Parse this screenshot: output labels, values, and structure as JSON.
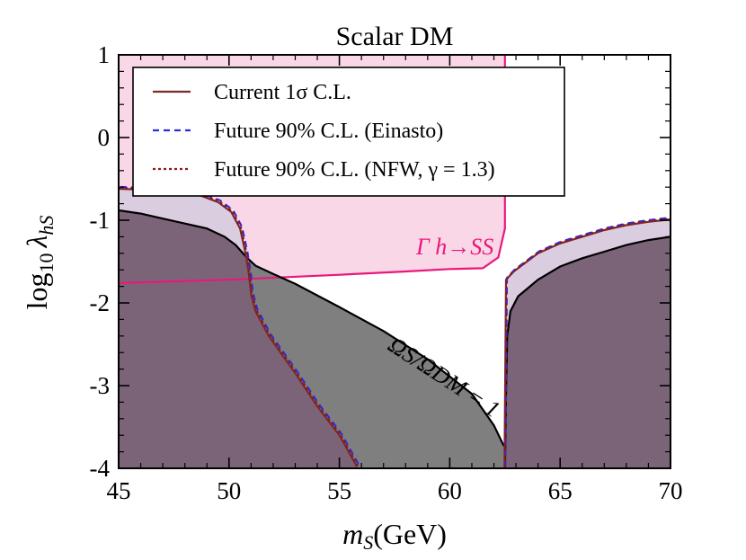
{
  "chart_data": {
    "type": "area",
    "title": "Scalar DM",
    "xlabel": {
      "main": "m",
      "sub": "S",
      "rest": "(GeV)"
    },
    "ylabel": {
      "main": "log",
      "sub1": "10",
      "lambda": "λ",
      "sub2": "hS"
    },
    "xlim": [
      45,
      70
    ],
    "ylim": [
      -4,
      1
    ],
    "xticks": [
      45,
      50,
      55,
      60,
      65,
      70
    ],
    "yticks": [
      1,
      0,
      -1,
      -2,
      -3,
      -4
    ],
    "ytick_labels": [
      "1",
      "0",
      "-1",
      "-2",
      "-3",
      "-4"
    ],
    "legend_position": "top-left",
    "legend": [
      {
        "label": "Current 1σ C.L.",
        "style": "solid",
        "color": "#7a2a2a"
      },
      {
        "label": "Future 90% C.L. (Einasto)",
        "style": "dashed",
        "color": "#2b2be0"
      },
      {
        "label": "Future 90% C.L. (NFW, γ = 1.3)",
        "style": "dotted",
        "color": "#8b1a1a"
      }
    ],
    "annotations": {
      "width_region": "Γ h→SS",
      "relic_line": "ΩS/ΩDM = 1"
    },
    "colors": {
      "gray_fill": "#7f7f7f",
      "lavender_fill": "#dbcde0",
      "overlap_fill": "#7c6478",
      "pink_fill": "#fad7e7",
      "pink_line": "#e8187d",
      "current_line": "#7a2a2a",
      "einasto_line": "#2b2be0",
      "nfw_line": "#8b1a1a"
    },
    "series": [
      {
        "name": "relic_density",
        "points": [
          [
            45,
            -0.88
          ],
          [
            46,
            -0.92
          ],
          [
            47,
            -0.98
          ],
          [
            48,
            -1.04
          ],
          [
            49,
            -1.1
          ],
          [
            49.8,
            -1.2
          ],
          [
            50.3,
            -1.3
          ],
          [
            50.8,
            -1.45
          ],
          [
            51.2,
            -1.55
          ],
          [
            52,
            -1.65
          ],
          [
            53,
            -1.77
          ],
          [
            55,
            -2.05
          ],
          [
            57,
            -2.34
          ],
          [
            59,
            -2.68
          ],
          [
            61,
            -3.1
          ],
          [
            62.0,
            -3.48
          ],
          [
            62.45,
            -3.73
          ]
        ]
      },
      {
        "name": "relic_density_right",
        "points": [
          [
            62.5,
            -4.0
          ],
          [
            62.55,
            -3.1
          ],
          [
            62.6,
            -2.4
          ],
          [
            62.75,
            -2.1
          ],
          [
            63.1,
            -1.92
          ],
          [
            64,
            -1.72
          ],
          [
            65,
            -1.56
          ],
          [
            66,
            -1.46
          ],
          [
            67,
            -1.38
          ],
          [
            68,
            -1.3
          ],
          [
            69,
            -1.24
          ],
          [
            70,
            -1.2
          ]
        ]
      },
      {
        "name": "current_bound_left",
        "points": [
          [
            45,
            -0.62
          ],
          [
            47,
            -0.64
          ],
          [
            48.5,
            -0.68
          ],
          [
            49.5,
            -0.78
          ],
          [
            50.1,
            -0.9
          ],
          [
            50.5,
            -1.1
          ],
          [
            50.75,
            -1.4
          ],
          [
            50.9,
            -1.65
          ],
          [
            51.0,
            -1.9
          ],
          [
            51.2,
            -2.1
          ],
          [
            51.8,
            -2.4
          ],
          [
            53,
            -2.85
          ],
          [
            54,
            -3.25
          ],
          [
            55,
            -3.6
          ],
          [
            55.8,
            -3.98
          ]
        ]
      },
      {
        "name": "current_bound_right",
        "points": [
          [
            62.48,
            -4.0
          ],
          [
            62.55,
            -1.72
          ],
          [
            62.9,
            -1.62
          ],
          [
            64,
            -1.4
          ],
          [
            65,
            -1.28
          ],
          [
            66,
            -1.2
          ],
          [
            67,
            -1.12
          ],
          [
            68,
            -1.06
          ],
          [
            69,
            -1.02
          ],
          [
            70,
            -0.99
          ]
        ]
      },
      {
        "name": "width_bound",
        "points": [
          [
            45,
            -1.76
          ],
          [
            50,
            -1.72
          ],
          [
            55,
            -1.66
          ],
          [
            58,
            -1.62
          ],
          [
            60,
            -1.59
          ],
          [
            61.5,
            -1.58
          ],
          [
            62.2,
            -1.45
          ],
          [
            62.5,
            -1.1
          ],
          [
            62.5,
            1.0
          ]
        ]
      }
    ]
  }
}
